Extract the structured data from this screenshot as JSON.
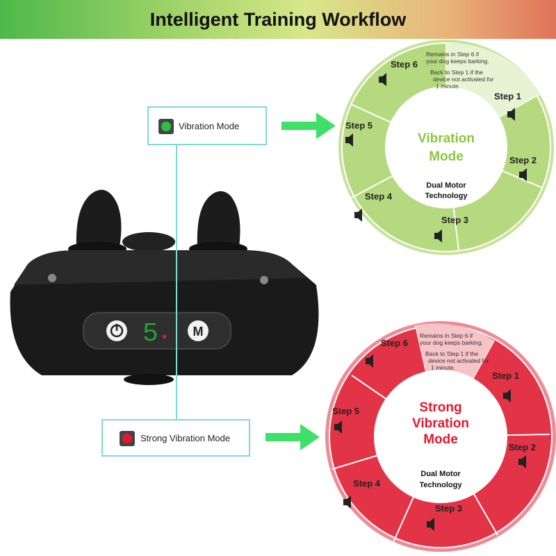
{
  "header": {
    "title": "Intelligent Training Workflow"
  },
  "modes": {
    "vibration": {
      "label": "Vibration Mode"
    },
    "strong": {
      "label": "Strong Vibration Mode"
    }
  },
  "device": {
    "display_text": "5",
    "power_icon": "power-icon",
    "mode_button": "M"
  },
  "wheel_common": {
    "note_line1": "Remains in Step 6 if",
    "note_line2": "your dog keeps barking.",
    "note_line3": "Back to Step 1 if the",
    "note_line4": "device not activated for",
    "note_line5": "1 minute.",
    "tech_line1": "Dual Motor",
    "tech_line2": "Technology",
    "steps": [
      "Step 1",
      "Step 2",
      "Step 3",
      "Step 4",
      "Step 5",
      "Step 6"
    ]
  },
  "wheel_green": {
    "center_line1": "Vibration",
    "center_line2": "Mode",
    "color": "#a8d36a",
    "text_color": "#8cc63f"
  },
  "wheel_red": {
    "center_line1": "Strong",
    "center_line2": "Vibration",
    "center_line3": "Mode",
    "color": "#e5273a",
    "text_color": "#e5182b"
  },
  "colors": {
    "accent_line": "#7fd9d3",
    "arrow": "#3fe06a"
  }
}
